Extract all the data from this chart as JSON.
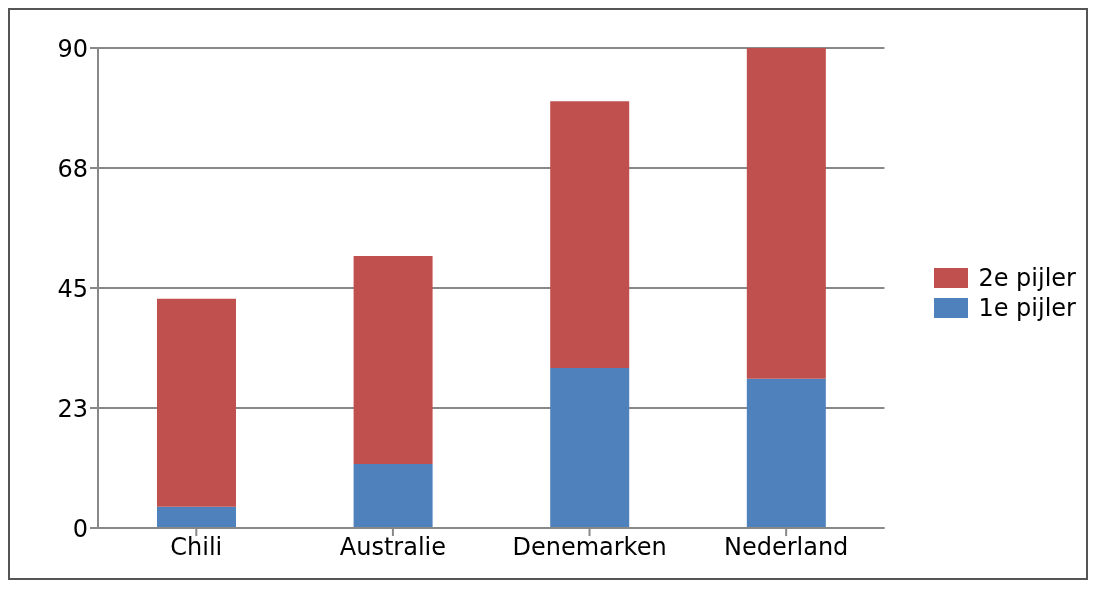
{
  "chart_data": {
    "type": "bar",
    "stacked": true,
    "categories": [
      "Chili",
      "Australie",
      "Denemarken",
      "Nederland"
    ],
    "series": [
      {
        "name": "1e pijler",
        "color": "#4f81bd",
        "values": [
          4,
          12,
          30,
          28
        ]
      },
      {
        "name": "2e pijler",
        "color": "#c0504d",
        "values": [
          39,
          39,
          50,
          62
        ]
      }
    ],
    "ylim": [
      0,
      90
    ],
    "yticks": [
      0,
      {
        "value": 22.5,
        "label": "23"
      },
      45,
      {
        "value": 67.5,
        "label": "68"
      },
      90
    ],
    "grid": "y",
    "legend": "right"
  }
}
